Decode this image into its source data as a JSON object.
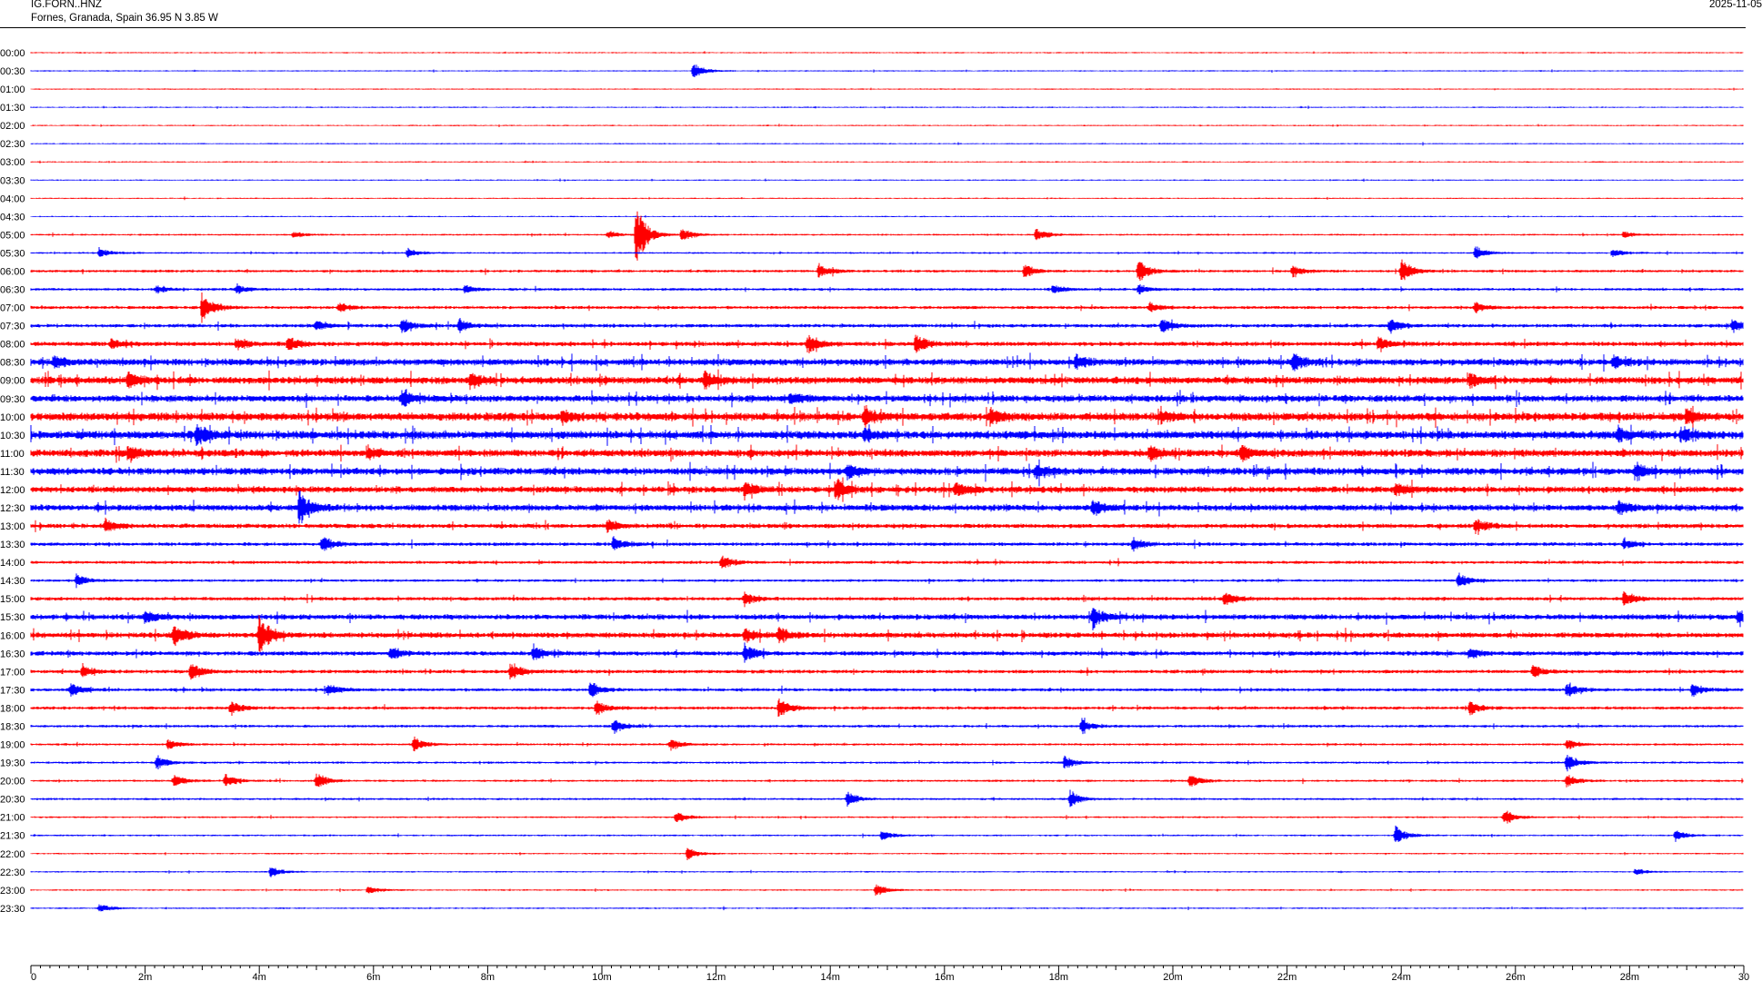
{
  "header": {
    "station_code": "IG.FORN..HNZ",
    "location": "Fornes, Granada, Spain  36.95 N 3.85 W",
    "date": "2025-11-05"
  },
  "chart_data": {
    "type": "line",
    "title": "",
    "xlabel": "",
    "ylabel": "",
    "x_tick_labels": [
      "0",
      "2m",
      "4m",
      "6m",
      "8m",
      "10m",
      "12m",
      "14m",
      "16m",
      "18m",
      "20m",
      "22m",
      "24m",
      "26m",
      "28m",
      "30"
    ],
    "x_range_minutes": [
      0,
      30
    ],
    "row_labels": [
      "00:00",
      "00:30",
      "01:00",
      "01:30",
      "02:00",
      "02:30",
      "03:00",
      "03:30",
      "04:00",
      "04:30",
      "05:00",
      "05:30",
      "06:00",
      "06:30",
      "07:00",
      "07:30",
      "08:00",
      "08:30",
      "09:00",
      "09:30",
      "10:00",
      "10:30",
      "11:00",
      "11:30",
      "12:00",
      "12:30",
      "13:00",
      "13:30",
      "14:00",
      "14:30",
      "15:00",
      "15:30",
      "16:00",
      "16:30",
      "17:00",
      "17:30",
      "18:00",
      "18:30",
      "19:00",
      "19:30",
      "20:00",
      "20:30",
      "21:00",
      "21:30",
      "22:00",
      "22:30",
      "23:00",
      "23:30"
    ],
    "series_colors": [
      "#ff0000",
      "#0000ff"
    ],
    "grid": false,
    "noise_level": [
      0.6,
      0.6,
      0.6,
      0.6,
      0.6,
      0.6,
      0.6,
      0.6,
      0.6,
      0.6,
      0.8,
      0.8,
      1.2,
      1.2,
      1.4,
      1.6,
      2.0,
      3.0,
      3.2,
      3.0,
      3.6,
      3.6,
      3.2,
      3.2,
      2.8,
      2.8,
      2.0,
      1.6,
      1.4,
      1.2,
      1.6,
      2.4,
      2.4,
      2.0,
      1.6,
      1.4,
      1.4,
      1.2,
      1.0,
      1.0,
      1.0,
      1.0,
      0.8,
      0.8,
      0.7,
      0.7,
      0.7,
      0.7
    ],
    "events": [
      {
        "row": "00:30",
        "minute": 11.6,
        "amplitude": 10
      },
      {
        "row": "05:00",
        "minute": 4.6,
        "amplitude": 4
      },
      {
        "row": "05:00",
        "minute": 10.1,
        "amplitude": 5
      },
      {
        "row": "05:00",
        "minute": 10.6,
        "amplitude": 38
      },
      {
        "row": "05:00",
        "minute": 11.4,
        "amplitude": 9
      },
      {
        "row": "05:00",
        "minute": 17.6,
        "amplitude": 9
      },
      {
        "row": "05:00",
        "minute": 27.9,
        "amplitude": 5
      },
      {
        "row": "05:30",
        "minute": 1.2,
        "amplitude": 7
      },
      {
        "row": "05:30",
        "minute": 6.6,
        "amplitude": 6
      },
      {
        "row": "05:30",
        "minute": 25.3,
        "amplitude": 9
      },
      {
        "row": "05:30",
        "minute": 27.7,
        "amplitude": 6
      },
      {
        "row": "06:00",
        "minute": 13.8,
        "amplitude": 10
      },
      {
        "row": "06:00",
        "minute": 17.4,
        "amplitude": 9
      },
      {
        "row": "06:00",
        "minute": 19.4,
        "amplitude": 14
      },
      {
        "row": "06:00",
        "minute": 22.1,
        "amplitude": 8
      },
      {
        "row": "06:00",
        "minute": 24.0,
        "amplitude": 16
      },
      {
        "row": "06:30",
        "minute": 2.2,
        "amplitude": 5
      },
      {
        "row": "06:30",
        "minute": 3.6,
        "amplitude": 6
      },
      {
        "row": "06:30",
        "minute": 7.6,
        "amplitude": 5
      },
      {
        "row": "06:30",
        "minute": 17.9,
        "amplitude": 6
      },
      {
        "row": "06:30",
        "minute": 19.4,
        "amplitude": 6
      },
      {
        "row": "07:00",
        "minute": 3.0,
        "amplitude": 22
      },
      {
        "row": "07:00",
        "minute": 5.4,
        "amplitude": 6
      },
      {
        "row": "07:00",
        "minute": 19.6,
        "amplitude": 6
      },
      {
        "row": "07:00",
        "minute": 25.3,
        "amplitude": 6
      },
      {
        "row": "07:30",
        "minute": 5.0,
        "amplitude": 8
      },
      {
        "row": "07:30",
        "minute": 6.5,
        "amplitude": 10
      },
      {
        "row": "07:30",
        "minute": 7.5,
        "amplitude": 8
      },
      {
        "row": "07:30",
        "minute": 19.8,
        "amplitude": 10
      },
      {
        "row": "07:30",
        "minute": 23.8,
        "amplitude": 12
      },
      {
        "row": "07:30",
        "minute": 29.8,
        "amplitude": 8
      },
      {
        "row": "08:00",
        "minute": 1.4,
        "amplitude": 6
      },
      {
        "row": "08:00",
        "minute": 3.6,
        "amplitude": 7
      },
      {
        "row": "08:00",
        "minute": 4.5,
        "amplitude": 9
      },
      {
        "row": "08:00",
        "minute": 13.6,
        "amplitude": 12
      },
      {
        "row": "08:00",
        "minute": 15.5,
        "amplitude": 12
      },
      {
        "row": "08:00",
        "minute": 23.6,
        "amplitude": 10
      },
      {
        "row": "08:30",
        "minute": 0.4,
        "amplitude": 7
      },
      {
        "row": "08:30",
        "minute": 18.3,
        "amplitude": 9
      },
      {
        "row": "08:30",
        "minute": 22.1,
        "amplitude": 10
      },
      {
        "row": "08:30",
        "minute": 27.7,
        "amplitude": 8
      },
      {
        "row": "09:00",
        "minute": 1.7,
        "amplitude": 9
      },
      {
        "row": "09:00",
        "minute": 7.7,
        "amplitude": 11
      },
      {
        "row": "09:00",
        "minute": 11.8,
        "amplitude": 10
      },
      {
        "row": "09:00",
        "minute": 25.2,
        "amplitude": 8
      },
      {
        "row": "09:30",
        "minute": 6.5,
        "amplitude": 9
      },
      {
        "row": "09:30",
        "minute": 13.3,
        "amplitude": 7
      },
      {
        "row": "10:00",
        "minute": 9.3,
        "amplitude": 8
      },
      {
        "row": "10:00",
        "minute": 14.6,
        "amplitude": 12
      },
      {
        "row": "10:00",
        "minute": 16.8,
        "amplitude": 10
      },
      {
        "row": "10:00",
        "minute": 19.8,
        "amplitude": 8
      },
      {
        "row": "10:00",
        "minute": 29.0,
        "amplitude": 10
      },
      {
        "row": "10:30",
        "minute": 2.9,
        "amplitude": 12
      },
      {
        "row": "10:30",
        "minute": 14.6,
        "amplitude": 8
      },
      {
        "row": "10:30",
        "minute": 27.8,
        "amplitude": 10
      },
      {
        "row": "10:30",
        "minute": 28.9,
        "amplitude": 9
      },
      {
        "row": "11:00",
        "minute": 1.7,
        "amplitude": 10
      },
      {
        "row": "11:00",
        "minute": 5.9,
        "amplitude": 8
      },
      {
        "row": "11:00",
        "minute": 19.6,
        "amplitude": 10
      },
      {
        "row": "11:00",
        "minute": 21.2,
        "amplitude": 10
      },
      {
        "row": "11:30",
        "minute": 14.3,
        "amplitude": 9
      },
      {
        "row": "11:30",
        "minute": 17.6,
        "amplitude": 10
      },
      {
        "row": "11:30",
        "minute": 28.1,
        "amplitude": 10
      },
      {
        "row": "12:00",
        "minute": 12.5,
        "amplitude": 10
      },
      {
        "row": "12:00",
        "minute": 14.1,
        "amplitude": 14
      },
      {
        "row": "12:00",
        "minute": 16.2,
        "amplitude": 9
      },
      {
        "row": "12:00",
        "minute": 23.9,
        "amplitude": 8
      },
      {
        "row": "12:30",
        "minute": 4.7,
        "amplitude": 22
      },
      {
        "row": "12:30",
        "minute": 18.6,
        "amplitude": 10
      },
      {
        "row": "12:30",
        "minute": 27.8,
        "amplitude": 9
      },
      {
        "row": "13:00",
        "minute": 1.3,
        "amplitude": 8
      },
      {
        "row": "13:00",
        "minute": 10.1,
        "amplitude": 8
      },
      {
        "row": "13:00",
        "minute": 25.3,
        "amplitude": 10
      },
      {
        "row": "13:30",
        "minute": 5.1,
        "amplitude": 12
      },
      {
        "row": "13:30",
        "minute": 10.2,
        "amplitude": 9
      },
      {
        "row": "13:30",
        "minute": 19.3,
        "amplitude": 8
      },
      {
        "row": "13:30",
        "minute": 27.9,
        "amplitude": 7
      },
      {
        "row": "14:00",
        "minute": 12.1,
        "amplitude": 10
      },
      {
        "row": "14:30",
        "minute": 0.8,
        "amplitude": 8
      },
      {
        "row": "14:30",
        "minute": 25.0,
        "amplitude": 11
      },
      {
        "row": "15:00",
        "minute": 12.5,
        "amplitude": 9
      },
      {
        "row": "15:00",
        "minute": 20.9,
        "amplitude": 10
      },
      {
        "row": "15:00",
        "minute": 27.9,
        "amplitude": 10
      },
      {
        "row": "15:30",
        "minute": 2.0,
        "amplitude": 10
      },
      {
        "row": "15:30",
        "minute": 18.6,
        "amplitude": 16
      },
      {
        "row": "15:30",
        "minute": 29.9,
        "amplitude": 8
      },
      {
        "row": "16:00",
        "minute": 2.5,
        "amplitude": 14
      },
      {
        "row": "16:00",
        "minute": 4.0,
        "amplitude": 26
      },
      {
        "row": "16:00",
        "minute": 12.5,
        "amplitude": 10
      },
      {
        "row": "16:00",
        "minute": 13.1,
        "amplitude": 10
      },
      {
        "row": "16:30",
        "minute": 6.3,
        "amplitude": 7
      },
      {
        "row": "16:30",
        "minute": 8.8,
        "amplitude": 9
      },
      {
        "row": "16:30",
        "minute": 12.5,
        "amplitude": 12
      },
      {
        "row": "16:30",
        "minute": 25.2,
        "amplitude": 8
      },
      {
        "row": "17:00",
        "minute": 0.9,
        "amplitude": 8
      },
      {
        "row": "17:00",
        "minute": 2.8,
        "amplitude": 12
      },
      {
        "row": "17:00",
        "minute": 8.4,
        "amplitude": 12
      },
      {
        "row": "17:00",
        "minute": 26.3,
        "amplitude": 8
      },
      {
        "row": "17:30",
        "minute": 0.7,
        "amplitude": 9
      },
      {
        "row": "17:30",
        "minute": 5.2,
        "amplitude": 8
      },
      {
        "row": "17:30",
        "minute": 9.8,
        "amplitude": 10
      },
      {
        "row": "17:30",
        "minute": 26.9,
        "amplitude": 10
      },
      {
        "row": "17:30",
        "minute": 29.1,
        "amplitude": 9
      },
      {
        "row": "18:00",
        "minute": 3.5,
        "amplitude": 8
      },
      {
        "row": "18:00",
        "minute": 9.9,
        "amplitude": 10
      },
      {
        "row": "18:00",
        "minute": 13.1,
        "amplitude": 12
      },
      {
        "row": "18:00",
        "minute": 25.2,
        "amplitude": 8
      },
      {
        "row": "18:30",
        "minute": 10.2,
        "amplitude": 10
      },
      {
        "row": "18:30",
        "minute": 18.4,
        "amplitude": 10
      },
      {
        "row": "19:00",
        "minute": 2.4,
        "amplitude": 7
      },
      {
        "row": "19:00",
        "minute": 6.7,
        "amplitude": 10
      },
      {
        "row": "19:00",
        "minute": 11.2,
        "amplitude": 8
      },
      {
        "row": "19:00",
        "minute": 26.9,
        "amplitude": 7
      },
      {
        "row": "19:30",
        "minute": 2.2,
        "amplitude": 10
      },
      {
        "row": "19:30",
        "minute": 18.1,
        "amplitude": 8
      },
      {
        "row": "19:30",
        "minute": 26.9,
        "amplitude": 12
      },
      {
        "row": "20:00",
        "minute": 2.5,
        "amplitude": 8
      },
      {
        "row": "20:00",
        "minute": 3.4,
        "amplitude": 9
      },
      {
        "row": "20:00",
        "minute": 5.0,
        "amplitude": 10
      },
      {
        "row": "20:00",
        "minute": 20.3,
        "amplitude": 9
      },
      {
        "row": "20:00",
        "minute": 26.9,
        "amplitude": 8
      },
      {
        "row": "20:30",
        "minute": 14.3,
        "amplitude": 9
      },
      {
        "row": "20:30",
        "minute": 18.2,
        "amplitude": 10
      },
      {
        "row": "21:00",
        "minute": 11.3,
        "amplitude": 8
      },
      {
        "row": "21:00",
        "minute": 25.8,
        "amplitude": 10
      },
      {
        "row": "21:30",
        "minute": 14.9,
        "amplitude": 7
      },
      {
        "row": "21:30",
        "minute": 23.9,
        "amplitude": 12
      },
      {
        "row": "21:30",
        "minute": 28.8,
        "amplitude": 7
      },
      {
        "row": "22:00",
        "minute": 11.5,
        "amplitude": 8
      },
      {
        "row": "22:30",
        "minute": 4.2,
        "amplitude": 7
      },
      {
        "row": "22:30",
        "minute": 28.1,
        "amplitude": 5
      },
      {
        "row": "23:00",
        "minute": 5.9,
        "amplitude": 6
      },
      {
        "row": "23:00",
        "minute": 14.8,
        "amplitude": 8
      },
      {
        "row": "23:30",
        "minute": 1.2,
        "amplitude": 6
      }
    ]
  }
}
